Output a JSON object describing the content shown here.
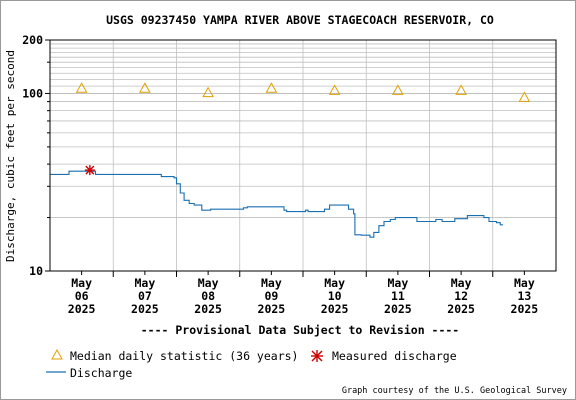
{
  "chart_data": {
    "type": "line",
    "title": "USGS 09237450 YAMPA RIVER ABOVE STAGECOACH RESERVOIR, CO",
    "ylabel": "Discharge, cubic feet per second",
    "xlabel": "",
    "y_scale": "log",
    "ylim": [
      10,
      200
    ],
    "y_ticks": [
      "200",
      "100",
      "10"
    ],
    "x_tick_labels": [
      {
        "month": "May",
        "day": "06",
        "year": "2025"
      },
      {
        "month": "May",
        "day": "07",
        "year": "2025"
      },
      {
        "month": "May",
        "day": "08",
        "year": "2025"
      },
      {
        "month": "May",
        "day": "09",
        "year": "2025"
      },
      {
        "month": "May",
        "day": "10",
        "year": "2025"
      },
      {
        "month": "May",
        "day": "11",
        "year": "2025"
      },
      {
        "month": "May",
        "day": "12",
        "year": "2025"
      },
      {
        "month": "May",
        "day": "13",
        "year": "2025"
      }
    ],
    "xlim_days": [
      5.5,
      13.5
    ],
    "median_statistic": {
      "name": "Median daily statistic (36 years)",
      "color": "#e0a000",
      "x_days": [
        6,
        7,
        8,
        9,
        10,
        11,
        12,
        13
      ],
      "values": [
        107,
        107,
        101,
        107,
        104,
        104,
        104,
        95
      ]
    },
    "measured": {
      "name": "Measured discharge",
      "color": "#cc0000",
      "points": [
        {
          "x_day": 6.13,
          "value": 37
        }
      ]
    },
    "series": [
      {
        "name": "Discharge",
        "color": "#1a6fb0",
        "x_days": [
          5.51,
          5.78,
          5.8,
          6.2,
          6.22,
          7.22,
          7.26,
          7.46,
          7.5,
          7.56,
          7.62,
          7.7,
          7.78,
          7.9,
          7.96,
          8.04,
          8.5,
          8.56,
          8.62,
          8.7,
          9.2,
          9.24,
          9.4,
          9.54,
          9.58,
          9.84,
          9.92,
          10.22,
          10.3,
          10.32,
          10.42,
          10.56,
          10.62,
          10.7,
          10.78,
          10.88,
          10.96,
          11.2,
          11.3,
          11.6,
          11.7,
          11.9,
          12.1,
          12.36,
          12.44,
          12.56,
          12.62,
          12.66
        ],
        "values": [
          35,
          35,
          36.5,
          36.5,
          35,
          35,
          34,
          33.5,
          31,
          27.5,
          25,
          24,
          23.5,
          22,
          22,
          22.3,
          22.3,
          22.7,
          23,
          23,
          22,
          21.6,
          21.6,
          22,
          21.6,
          22.3,
          23.5,
          22.3,
          21,
          16,
          15.9,
          15.5,
          16.5,
          18,
          19,
          19.5,
          20,
          20,
          19,
          19.5,
          19,
          19.7,
          20.5,
          20,
          19,
          18.7,
          18.2,
          18.2
        ]
      }
    ],
    "legend": {
      "median_label": "Median daily statistic (36 years)",
      "measured_label": "Measured discharge",
      "discharge_label": "Discharge",
      "placement": "bottom"
    },
    "provisional_note": "---- Provisional Data Subject to Revision ----",
    "credit": "Graph courtesy of the U.S. Geological Survey",
    "grid": true
  },
  "colors": {
    "grid": "#bfbfbf",
    "axis": "#000000",
    "provisional": "#cc0000"
  }
}
